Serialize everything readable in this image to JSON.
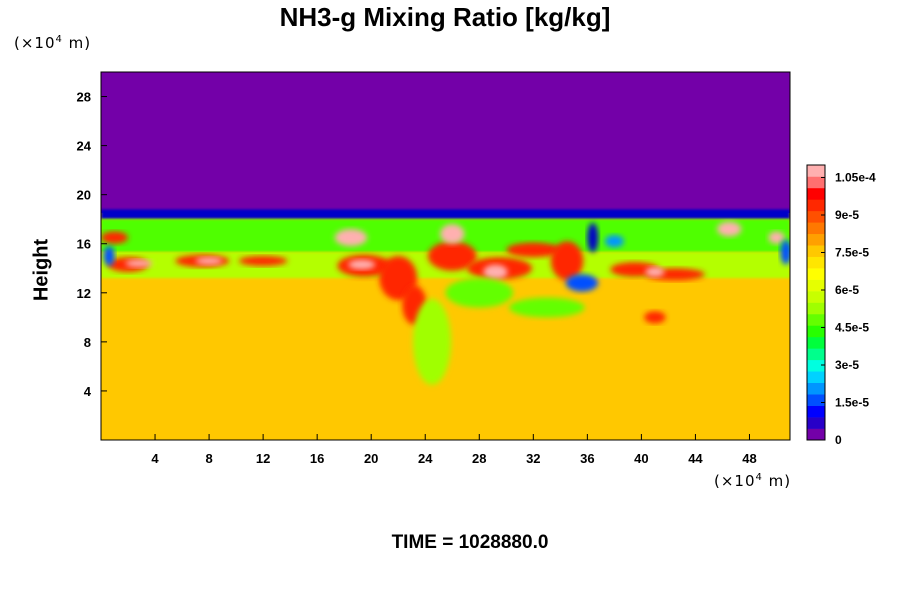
{
  "chart_data": {
    "type": "heatmap",
    "title": "NH3-g Mixing Ratio [kg/kg]",
    "ylabel": "Height",
    "y_unit": {
      "prefix": "(×10",
      "exp": "4",
      "suffix": " m)"
    },
    "x_unit": {
      "prefix": "(×10",
      "exp": "4",
      "suffix": " m)"
    },
    "xlim": [
      0,
      51
    ],
    "ylim": [
      0,
      30
    ],
    "x_ticks": [
      4,
      8,
      12,
      16,
      20,
      24,
      28,
      32,
      36,
      40,
      44,
      48
    ],
    "y_ticks": [
      4,
      8,
      12,
      16,
      20,
      24,
      28
    ],
    "colorbar": {
      "vmin": 0,
      "vmax": 0.00011,
      "tick_values": [
        0,
        1.5e-05,
        3e-05,
        4.5e-05,
        6e-05,
        7.5e-05,
        9e-05,
        0.000105
      ],
      "tick_labels": [
        "0",
        "1.5e-5",
        "3e-5",
        "4.5e-5",
        "6e-5",
        "7.5e-5",
        "9e-5",
        "1.05e-4"
      ],
      "colors": [
        "#7300a8",
        "#2800c8",
        "#0000ff",
        "#0050ff",
        "#0096ff",
        "#00d2ff",
        "#00ffe0",
        "#00ff8c",
        "#00ff3c",
        "#28ff00",
        "#64ff00",
        "#a0ff00",
        "#c8ff00",
        "#e6ff00",
        "#ffff00",
        "#ffe600",
        "#ffc800",
        "#ffa000",
        "#ff7800",
        "#ff5000",
        "#ff2800",
        "#ff0000",
        "#ff7070",
        "#ffb0b0"
      ]
    },
    "field_description": {
      "upper_region_value": 0,
      "lower_region_value": 7.7e-05,
      "boundary_height_approx": 18.5
    }
  },
  "footer": {
    "time_label": "TIME = 1028880.0"
  }
}
